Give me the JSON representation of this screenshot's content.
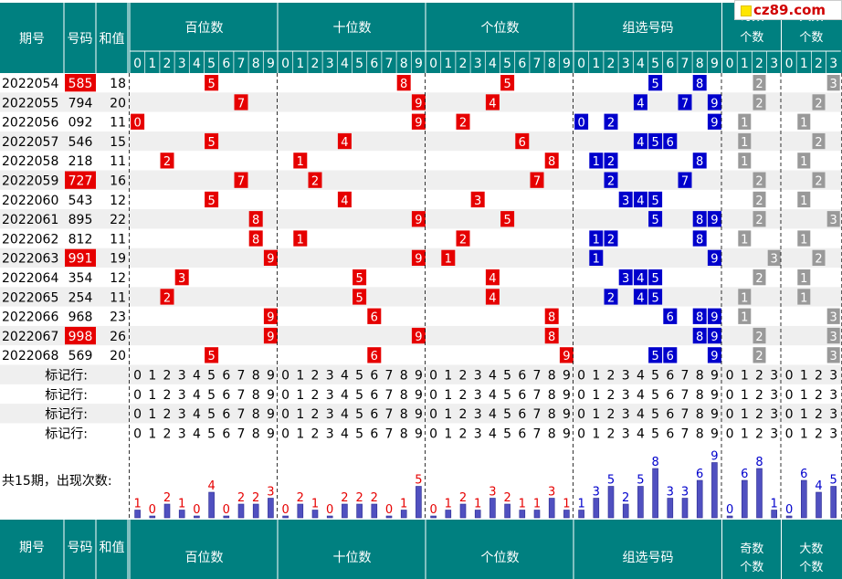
{
  "watermark": "cz89.com",
  "header": {
    "issue": "期号",
    "number": "号码",
    "sum": "和值",
    "groups": [
      "百位数",
      "十位数",
      "个位数",
      "组选号码",
      "奇数个数",
      "大数个数"
    ]
  },
  "digit_labels": [
    "0",
    "1",
    "2",
    "3",
    "4",
    "5",
    "6",
    "7",
    "8",
    "9"
  ],
  "ratio_labels": [
    "0",
    "1",
    "2",
    "3"
  ],
  "rows": [
    {
      "issue": "2022054",
      "number": "585",
      "sum": "18",
      "hl": true,
      "odd": 2,
      "big": 3
    },
    {
      "issue": "2022055",
      "number": "794",
      "sum": "20",
      "hl": false,
      "odd": 2,
      "big": 2
    },
    {
      "issue": "2022056",
      "number": "092",
      "sum": "11",
      "hl": false,
      "odd": 1,
      "big": 1
    },
    {
      "issue": "2022057",
      "number": "546",
      "sum": "15",
      "hl": false,
      "odd": 1,
      "big": 2
    },
    {
      "issue": "2022058",
      "number": "218",
      "sum": "11",
      "hl": false,
      "odd": 1,
      "big": 1
    },
    {
      "issue": "2022059",
      "number": "727",
      "sum": "16",
      "hl": true,
      "odd": 2,
      "big": 2
    },
    {
      "issue": "2022060",
      "number": "543",
      "sum": "12",
      "hl": false,
      "odd": 2,
      "big": 1
    },
    {
      "issue": "2022061",
      "number": "895",
      "sum": "22",
      "hl": false,
      "odd": 2,
      "big": 3
    },
    {
      "issue": "2022062",
      "number": "812",
      "sum": "11",
      "hl": false,
      "odd": 1,
      "big": 1
    },
    {
      "issue": "2022063",
      "number": "991",
      "sum": "19",
      "hl": true,
      "odd": 3,
      "big": 2
    },
    {
      "issue": "2022064",
      "number": "354",
      "sum": "12",
      "hl": false,
      "odd": 2,
      "big": 1
    },
    {
      "issue": "2022065",
      "number": "254",
      "sum": "11",
      "hl": false,
      "odd": 1,
      "big": 1
    },
    {
      "issue": "2022066",
      "number": "968",
      "sum": "23",
      "hl": false,
      "odd": 1,
      "big": 3
    },
    {
      "issue": "2022067",
      "number": "998",
      "sum": "26",
      "hl": true,
      "odd": 2,
      "big": 3
    },
    {
      "issue": "2022068",
      "number": "569",
      "sum": "20",
      "hl": false,
      "odd": 2,
      "big": 3
    }
  ],
  "mark_label": "标记行:",
  "summary_label": "共15期，出现次数:",
  "counts": {
    "hundreds": [
      1,
      0,
      2,
      1,
      0,
      4,
      0,
      2,
      2,
      3
    ],
    "tens": [
      0,
      2,
      1,
      0,
      2,
      2,
      2,
      0,
      1,
      5
    ],
    "units": [
      0,
      1,
      2,
      1,
      3,
      2,
      1,
      1,
      3,
      1
    ],
    "group": [
      1,
      3,
      5,
      2,
      5,
      8,
      3,
      3,
      6,
      9
    ],
    "odd": [
      0,
      6,
      8,
      1
    ],
    "big": [
      0,
      6,
      4,
      5
    ]
  },
  "colors": {
    "header_bg": "#008080",
    "red": "#e60000",
    "blue": "#0000cc",
    "gray": "#999999",
    "bar": "#5050c0"
  },
  "chart_data": {
    "type": "bar",
    "title": "共15期，出现次数:",
    "series": [
      {
        "name": "百位数",
        "categories": [
          "0",
          "1",
          "2",
          "3",
          "4",
          "5",
          "6",
          "7",
          "8",
          "9"
        ],
        "values": [
          1,
          0,
          2,
          1,
          0,
          4,
          0,
          2,
          2,
          3
        ]
      },
      {
        "name": "十位数",
        "categories": [
          "0",
          "1",
          "2",
          "3",
          "4",
          "5",
          "6",
          "7",
          "8",
          "9"
        ],
        "values": [
          0,
          2,
          1,
          0,
          2,
          2,
          2,
          0,
          1,
          5
        ]
      },
      {
        "name": "个位数",
        "categories": [
          "0",
          "1",
          "2",
          "3",
          "4",
          "5",
          "6",
          "7",
          "8",
          "9"
        ],
        "values": [
          0,
          1,
          2,
          1,
          3,
          2,
          1,
          1,
          3,
          1
        ]
      },
      {
        "name": "组选号码",
        "categories": [
          "0",
          "1",
          "2",
          "3",
          "4",
          "5",
          "6",
          "7",
          "8",
          "9"
        ],
        "values": [
          1,
          3,
          5,
          2,
          5,
          8,
          3,
          3,
          6,
          9
        ]
      },
      {
        "name": "奇数个数",
        "categories": [
          "0",
          "1",
          "2",
          "3"
        ],
        "values": [
          0,
          6,
          8,
          1
        ]
      },
      {
        "name": "大数个数",
        "categories": [
          "0",
          "1",
          "2",
          "3"
        ],
        "values": [
          0,
          6,
          4,
          5
        ]
      }
    ]
  }
}
